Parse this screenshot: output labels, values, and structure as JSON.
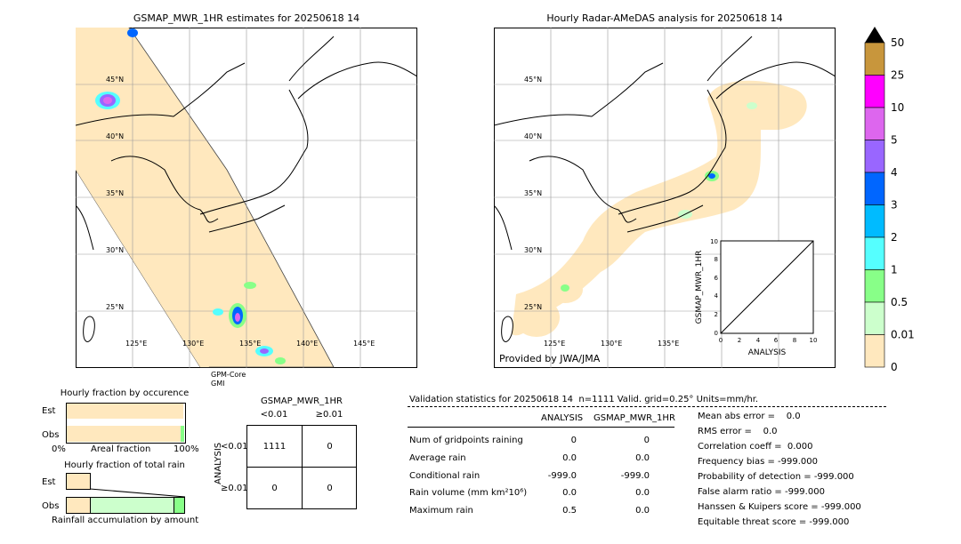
{
  "left_map": {
    "title": "GSMAP_MWR_1HR estimates for 20250618 14",
    "lat_labels": [
      "45°N",
      "40°N",
      "35°N",
      "30°N",
      "25°N"
    ],
    "lon_labels": [
      "125°E",
      "130°E",
      "135°E",
      "140°E",
      "145°E"
    ],
    "sensor_label": "GPM-Core",
    "sensor_sub": "GMI"
  },
  "right_map": {
    "title": "Hourly Radar-AMeDAS analysis for 20250618 14",
    "lat_labels": [
      "45°N",
      "40°N",
      "35°N",
      "30°N",
      "25°N"
    ],
    "lon_labels": [
      "125°E",
      "130°E",
      "135°E"
    ],
    "provider": "Provided by JWA/JMA"
  },
  "colorbar": {
    "labels": [
      "50",
      "25",
      "10",
      "5",
      "4",
      "3",
      "2",
      "1",
      "0.5",
      "0.01",
      "0"
    ],
    "colors": [
      "#c8963c",
      "#ff00ff",
      "#dd66ee",
      "#9966ff",
      "#0066ff",
      "#00bbff",
      "#55ffff",
      "#88ff88",
      "#ccffcc",
      "#ffe8be"
    ],
    "cap_color": "#000000",
    "colors_note": "ordered top to bottom"
  },
  "scatter_inset": {
    "xlabel": "ANALYSIS",
    "ylabel": "GSMAP_MWR_1HR",
    "ticks": [
      "0",
      "2",
      "4",
      "6",
      "8",
      "10"
    ]
  },
  "fraction_occurrence": {
    "title": "Hourly fraction by occurence",
    "row_labels": [
      "Est",
      "Obs"
    ],
    "axis_left": "0%",
    "axis_mid": "Areal fraction",
    "axis_right": "100%"
  },
  "fraction_total": {
    "title": "Hourly fraction of total rain",
    "row_labels": [
      "Est",
      "Obs"
    ],
    "footer": "Rainfall accumulation by amount"
  },
  "contingency": {
    "title": "GSMAP_MWR_1HR",
    "col_headers": [
      "<0.01",
      "≥0.01"
    ],
    "row_headers": [
      "<0.01",
      "≥0.01"
    ],
    "row_axis": "ANALYSIS",
    "cells": [
      [
        "1111",
        "0"
      ],
      [
        "0",
        "0"
      ]
    ]
  },
  "validation": {
    "header": "Validation statistics for 20250618 14  n=1111 Valid. grid=0.25° Units=mm/hr.",
    "col_headers": [
      "ANALYSIS",
      "GSMAP_MWR_1HR"
    ],
    "rows": [
      {
        "label": "Num of gridpoints raining",
        "a": "0",
        "b": "0"
      },
      {
        "label": "Average rain",
        "a": "0.0",
        "b": "0.0"
      },
      {
        "label": "Conditional rain",
        "a": "-999.0",
        "b": "-999.0"
      },
      {
        "label": "Rain volume (mm km²10⁶)",
        "a": "0.0",
        "b": "0.0"
      },
      {
        "label": "Maximum rain",
        "a": "0.5",
        "b": "0.0"
      }
    ],
    "scores": [
      "Mean abs error =    0.0",
      "RMS error =    0.0",
      "Correlation coeff =  0.000",
      "Frequency bias = -999.000",
      "Probability of detection = -999.000",
      "False alarm ratio = -999.000",
      "Hanssen & Kuipers score = -999.000",
      "Equitable threat score = -999.000"
    ]
  },
  "chart_data": {
    "type": "table",
    "contingency_table": {
      "rows": [
        "<0.01",
        "≥0.01"
      ],
      "cols": [
        "<0.01",
        "≥0.01"
      ],
      "values": [
        [
          1111,
          0
        ],
        [
          0,
          0
        ]
      ]
    },
    "n": 1111,
    "statistics": {
      "analysis": {
        "num_raining": 0,
        "average": 0.0,
        "conditional": -999.0,
        "volume": 0.0,
        "max": 0.5
      },
      "estimate": {
        "num_raining": 0,
        "average": 0.0,
        "conditional": -999.0,
        "volume": 0.0,
        "max": 0.0
      }
    },
    "colorbar_levels": [
      0,
      0.01,
      0.5,
      1,
      2,
      3,
      4,
      5,
      10,
      25,
      50
    ],
    "fraction_occurrence": {
      "est": 0.98,
      "obs": 0.96
    },
    "fraction_total_rain": {
      "obs_segments": [
        0.25,
        0.65,
        0.1
      ]
    }
  }
}
